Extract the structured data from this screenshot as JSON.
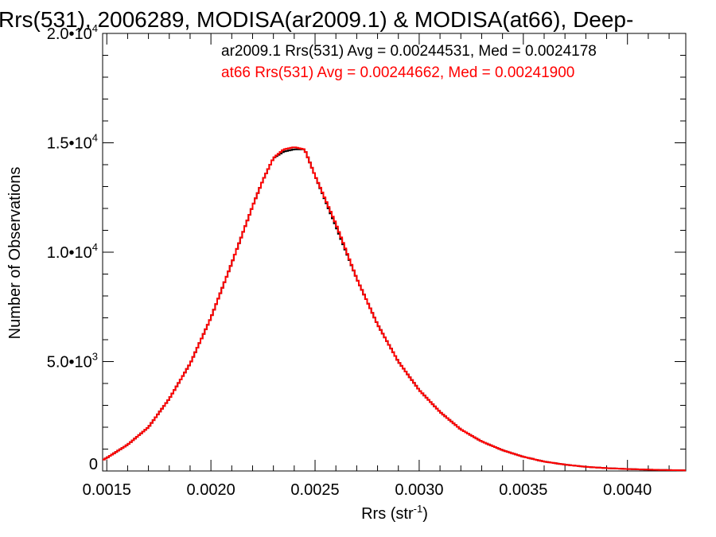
{
  "chart_data": {
    "type": "line",
    "title": "Rrs(531), 2006289, MODISA(ar2009.1) & MODISA(at66), Deep-",
    "xlabel": "Rrs (str",
    "xlabel_sup": "-1",
    "xlabel_close": ")",
    "ylabel": "Number of Observations",
    "xlim": [
      0.00148,
      0.00428
    ],
    "ylim": [
      0,
      20000
    ],
    "x_ticks": [
      {
        "value": 0.0015,
        "label": "0.0015"
      },
      {
        "value": 0.002,
        "label": "0.0020"
      },
      {
        "value": 0.0025,
        "label": "0.0025"
      },
      {
        "value": 0.003,
        "label": "0.0030"
      },
      {
        "value": 0.0035,
        "label": "0.0035"
      },
      {
        "value": 0.004,
        "label": "0.0040"
      }
    ],
    "y_ticks": [
      {
        "value": 0,
        "mant": "0",
        "exp": ""
      },
      {
        "value": 5000,
        "mant": "5.0•10",
        "exp": "3"
      },
      {
        "value": 10000,
        "mant": "1.0•10",
        "exp": "4"
      },
      {
        "value": 15000,
        "mant": "1.5•10",
        "exp": "4"
      },
      {
        "value": 20000,
        "mant": "2.0•10",
        "exp": "4"
      }
    ],
    "legend": [
      "ar2009.1 Rrs(531) Avg = 0.00244531, Med = 0.0024178",
      "at66 Rrs(531) Avg = 0.00244662, Med = 0.00241900"
    ],
    "series": [
      {
        "color": "#000000",
        "x": [
          0.00148,
          0.0015,
          0.0016,
          0.0017,
          0.0018,
          0.0019,
          0.002,
          0.0021,
          0.0022,
          0.00225,
          0.0023,
          0.00235,
          0.0024,
          0.00245,
          0.0025,
          0.0026,
          0.0027,
          0.0028,
          0.0029,
          0.003,
          0.0031,
          0.0032,
          0.0033,
          0.0034,
          0.0035,
          0.0036,
          0.0037,
          0.0038,
          0.0039,
          0.004,
          0.0041,
          0.0042,
          0.00428
        ],
        "y": [
          500,
          600,
          1200,
          2000,
          3300,
          4900,
          7000,
          9500,
          12100,
          13300,
          14300,
          14600,
          14700,
          14700,
          13500,
          11200,
          8800,
          6700,
          5000,
          3700,
          2700,
          1900,
          1350,
          950,
          650,
          430,
          290,
          190,
          130,
          90,
          60,
          40,
          30
        ]
      },
      {
        "color": "#ff0000",
        "x": [
          0.00148,
          0.0015,
          0.0016,
          0.0017,
          0.0018,
          0.0019,
          0.002,
          0.0021,
          0.0022,
          0.00225,
          0.0023,
          0.00235,
          0.0024,
          0.00245,
          0.0025,
          0.0026,
          0.0027,
          0.0028,
          0.0029,
          0.003,
          0.0031,
          0.0032,
          0.0033,
          0.0034,
          0.0035,
          0.0036,
          0.0037,
          0.0038,
          0.0039,
          0.004,
          0.0041,
          0.0042,
          0.00428
        ],
        "y": [
          500,
          600,
          1200,
          2000,
          3300,
          4900,
          7000,
          9500,
          12100,
          13300,
          14300,
          14700,
          14800,
          14700,
          13500,
          11300,
          8800,
          6700,
          5000,
          3700,
          2700,
          1900,
          1350,
          950,
          650,
          430,
          290,
          190,
          130,
          90,
          60,
          40,
          30
        ]
      }
    ]
  }
}
